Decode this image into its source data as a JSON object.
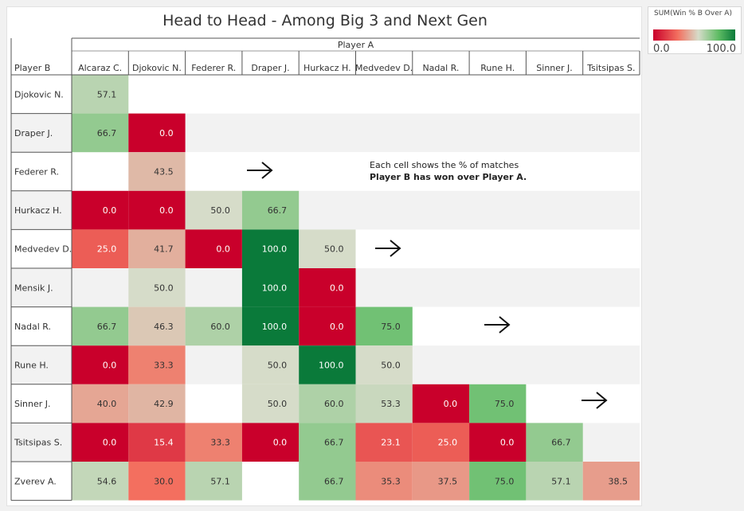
{
  "chart_data": {
    "type": "heatmap",
    "title": "Head to Head - Among Big 3 and Next Gen",
    "xlabel": "Player A",
    "ylabel": "Player B",
    "columns": [
      "Alcaraz C.",
      "Djokovic N.",
      "Federer R.",
      "Draper J.",
      "Hurkacz H.",
      "Medvedev D.",
      "Nadal R.",
      "Rune H.",
      "Sinner J.",
      "Tsitsipas S."
    ],
    "rows": [
      "Djokovic N.",
      "Draper J.",
      "Federer R.",
      "Hurkacz H.",
      "Medvedev D.",
      "Mensik J.",
      "Nadal R.",
      "Rune H.",
      "Sinner J.",
      "Tsitsipas S.",
      "Zverev A."
    ],
    "values": [
      [
        57.1,
        null,
        null,
        null,
        null,
        null,
        null,
        null,
        null,
        null
      ],
      [
        66.7,
        0.0,
        null,
        null,
        null,
        null,
        null,
        null,
        null,
        null
      ],
      [
        null,
        43.5,
        null,
        null,
        null,
        null,
        null,
        null,
        null,
        null
      ],
      [
        0.0,
        0.0,
        50.0,
        66.7,
        null,
        null,
        null,
        null,
        null,
        null
      ],
      [
        25.0,
        41.7,
        0.0,
        100.0,
        50.0,
        null,
        null,
        null,
        null,
        null
      ],
      [
        null,
        50.0,
        null,
        100.0,
        0.0,
        null,
        null,
        null,
        null,
        null
      ],
      [
        66.7,
        46.3,
        60.0,
        100.0,
        0.0,
        75.0,
        null,
        null,
        null,
        null
      ],
      [
        0.0,
        33.3,
        null,
        50.0,
        100.0,
        50.0,
        null,
        null,
        null,
        null
      ],
      [
        40.0,
        42.9,
        null,
        50.0,
        60.0,
        53.3,
        0.0,
        75.0,
        null,
        null
      ],
      [
        0.0,
        15.4,
        33.3,
        0.0,
        66.7,
        23.1,
        25.0,
        0.0,
        66.7,
        null
      ],
      [
        54.6,
        30.0,
        57.1,
        null,
        66.7,
        35.3,
        37.5,
        75.0,
        57.1,
        38.5
      ]
    ],
    "legend": {
      "title": "SUM(Win % B Over A)",
      "min": "0.0",
      "max": "100.0",
      "min_color": "#c9002b",
      "mid_color": "#d6dcc9",
      "max_color": "#0a7a3a"
    },
    "annotation": {
      "line1": "Each cell shows the % of matches",
      "line2": "Player B has won over Player A."
    }
  }
}
